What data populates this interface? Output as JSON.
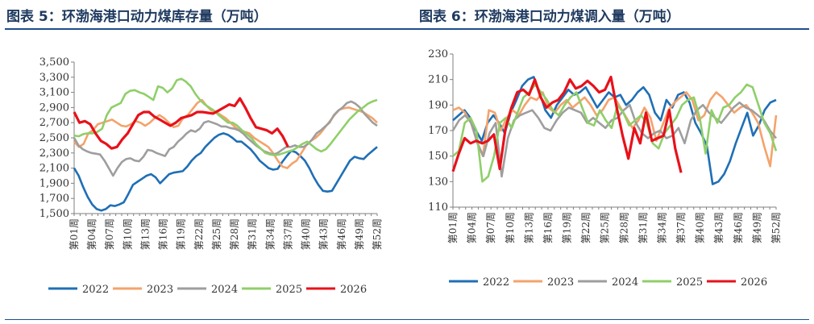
{
  "week_labels": [
    "第01周",
    "第04周",
    "第07周",
    "第10周",
    "第13周",
    "第16周",
    "第19周",
    "第22周",
    "第25周",
    "第28周",
    "第31周",
    "第34周",
    "第37周",
    "第40周",
    "第43周",
    "第46周",
    "第49周",
    "第52周"
  ],
  "colors": {
    "2022": "#1f6fb5",
    "2023": "#f4a36b",
    "2024": "#9e9e9e",
    "2025": "#8fcf6a",
    "2026": "#e8111a"
  },
  "chart_data": [
    {
      "type": "line",
      "title": "图表 5：环渤海港口动力煤库存量（万吨）",
      "xlabel": "",
      "ylabel": "",
      "ylim": [
        1500,
        3500
      ],
      "yticks": [
        "1,500",
        "1,700",
        "1,900",
        "2,100",
        "2,300",
        "2,500",
        "2,700",
        "2,900",
        "3,100",
        "3,300",
        "3,500"
      ],
      "ytick_values": [
        1500,
        1700,
        1900,
        2100,
        2300,
        2500,
        2700,
        2900,
        3100,
        3300,
        3500
      ],
      "x_count": 52,
      "grid": false,
      "legend_position": "bottom",
      "series": [
        {
          "name": "2022",
          "values": [
            2100,
            2000,
            1850,
            1720,
            1620,
            1560,
            1540,
            1560,
            1610,
            1600,
            1620,
            1650,
            1760,
            1880,
            1920,
            1960,
            2000,
            2020,
            1980,
            1900,
            1960,
            2020,
            2040,
            2050,
            2060,
            2120,
            2200,
            2260,
            2300,
            2380,
            2440,
            2500,
            2540,
            2560,
            2540,
            2500,
            2450,
            2450,
            2400,
            2350,
            2280,
            2200,
            2150,
            2100,
            2080,
            2090,
            2180,
            2260,
            2330,
            2310,
            2260,
            2200,
            2100,
            1980,
            1880,
            1800,
            1790,
            1800,
            1900,
            2000,
            2100,
            2200,
            2250,
            2230,
            2220,
            2280,
            2330,
            2380
          ]
        },
        {
          "name": "2023",
          "values": [
            2450,
            2380,
            2420,
            2560,
            2600,
            2680,
            2700,
            2720,
            2740,
            2700,
            2660,
            2650,
            2680,
            2720,
            2700,
            2660,
            2700,
            2760,
            2800,
            2760,
            2700,
            2640,
            2660,
            2760,
            2800,
            2880,
            2960,
            3000,
            2920,
            2860,
            2840,
            2800,
            2760,
            2700,
            2640,
            2600,
            2580,
            2560,
            2500,
            2460,
            2420,
            2380,
            2300,
            2200,
            2120,
            2100,
            2160,
            2200,
            2300,
            2400,
            2460,
            2500,
            2560,
            2640,
            2720,
            2800,
            2870,
            2890,
            2900,
            2880,
            2860,
            2840,
            2800,
            2760,
            2700
          ]
        },
        {
          "name": "2024",
          "values": [
            2500,
            2400,
            2350,
            2320,
            2300,
            2290,
            2280,
            2200,
            2100,
            2000,
            2100,
            2180,
            2220,
            2230,
            2200,
            2190,
            2250,
            2340,
            2330,
            2300,
            2280,
            2260,
            2350,
            2380,
            2450,
            2500,
            2560,
            2600,
            2580,
            2620,
            2700,
            2720,
            2700,
            2680,
            2650,
            2650,
            2630,
            2620,
            2600,
            2560,
            2500,
            2450,
            2400,
            2360,
            2320,
            2300,
            2280,
            2300,
            2340,
            2380,
            2380,
            2400,
            2380,
            2380,
            2420,
            2480,
            2560,
            2600,
            2650,
            2700,
            2800,
            2860,
            2900,
            2960,
            2980,
            2950,
            2900,
            2820,
            2760,
            2700,
            2660
          ]
        },
        {
          "name": "2025",
          "values": [
            2530,
            2520,
            2550,
            2560,
            2560,
            2580,
            2620,
            2800,
            2900,
            2930,
            2960,
            3080,
            3120,
            3130,
            3100,
            3080,
            3040,
            3000,
            3180,
            3160,
            3100,
            3150,
            3260,
            3280,
            3240,
            3180,
            3080,
            3000,
            2940,
            2900,
            2860,
            2800,
            2750,
            2700,
            2700,
            2660,
            2600,
            2550,
            2500,
            2420,
            2360,
            2300,
            2280,
            2270,
            2280,
            2300,
            2320,
            2340,
            2380,
            2420,
            2450,
            2400,
            2350,
            2320,
            2350,
            2420,
            2500,
            2580,
            2660,
            2740,
            2800,
            2860,
            2900,
            2950,
            2980,
            3000
          ]
        },
        {
          "name": "2026",
          "values": [
            2840,
            2700,
            2720,
            2680,
            2560,
            2460,
            2420,
            2360,
            2380,
            2480,
            2560,
            2680,
            2800,
            2840,
            2840,
            2780,
            2740,
            2700,
            2660,
            2700,
            2760,
            2780,
            2800,
            2840,
            2840,
            2830,
            2820,
            2860,
            2900,
            2940,
            2920,
            3020,
            2900,
            2760,
            2640,
            2620,
            2600,
            2560,
            2620,
            2520,
            2380
          ]
        }
      ]
    },
    {
      "type": "line",
      "title": "图表 6：环渤海港口动力煤调入量（万吨）",
      "xlabel": "",
      "ylabel": "",
      "ylim": [
        110,
        230
      ],
      "yticks": [
        "110",
        "130",
        "150",
        "170",
        "190",
        "210",
        "230"
      ],
      "ytick_values": [
        110,
        130,
        150,
        170,
        190,
        210,
        230
      ],
      "x_count": 52,
      "grid": false,
      "legend_position": "bottom",
      "series": [
        {
          "name": "2022",
          "values": [
            178,
            182,
            186,
            180,
            170,
            162,
            176,
            182,
            176,
            168,
            184,
            194,
            205,
            210,
            212,
            200,
            186,
            180,
            190,
            196,
            202,
            198,
            200,
            204,
            196,
            188,
            194,
            200,
            196,
            198,
            190,
            194,
            200,
            204,
            198,
            184,
            178,
            194,
            188,
            198,
            200,
            192,
            176,
            168,
            158,
            128,
            130,
            136,
            146,
            160,
            172,
            184,
            166,
            174,
            186,
            192,
            194
          ]
        },
        {
          "name": "2023",
          "values": [
            186,
            188,
            184,
            176,
            162,
            150,
            186,
            184,
            170,
            180,
            186,
            182,
            190,
            196,
            194,
            200,
            188,
            184,
            190,
            194,
            188,
            192,
            196,
            190,
            182,
            186,
            194,
            196,
            188,
            180,
            172,
            178,
            188,
            180,
            162,
            174,
            186,
            192,
            196,
            200,
            194,
            178,
            182,
            194,
            200,
            196,
            190,
            184,
            188,
            190,
            184,
            176,
            158,
            142,
            182
          ]
        },
        {
          "name": "2024",
          "values": [
            170,
            178,
            182,
            176,
            160,
            150,
            168,
            176,
            134,
            164,
            178,
            182,
            184,
            186,
            180,
            172,
            170,
            178,
            184,
            188,
            186,
            184,
            176,
            180,
            176,
            172,
            178,
            180,
            186,
            190,
            176,
            168,
            164,
            168,
            170,
            164,
            166,
            172,
            160,
            178,
            186,
            190,
            184,
            180,
            176,
            182,
            188,
            192,
            188,
            186,
            182,
            178,
            170,
            164
          ]
        },
        {
          "name": "2025",
          "values": [
            150,
            154,
            176,
            180,
            170,
            130,
            134,
            150,
            176,
            180,
            172,
            184,
            196,
            200,
            206,
            200,
            194,
            186,
            182,
            190,
            196,
            200,
            188,
            176,
            174,
            186,
            178,
            172,
            190,
            184,
            174,
            178,
            182,
            176,
            160,
            156,
            168,
            174,
            180,
            190,
            194,
            196,
            180,
            152,
            186,
            176,
            188,
            190,
            196,
            200,
            206,
            204,
            190,
            176,
            168,
            154
          ]
        },
        {
          "name": "2026",
          "values": [
            138,
            152,
            164,
            160,
            162,
            160,
            162,
            167,
            140,
            172,
            188,
            200,
            202,
            198,
            210,
            196,
            188,
            192,
            194,
            200,
            210,
            203,
            205,
            209,
            205,
            200,
            202,
            212,
            188,
            166,
            148,
            172,
            160,
            184,
            162,
            164,
            166,
            186,
            156,
            137
          ]
        }
      ]
    }
  ]
}
